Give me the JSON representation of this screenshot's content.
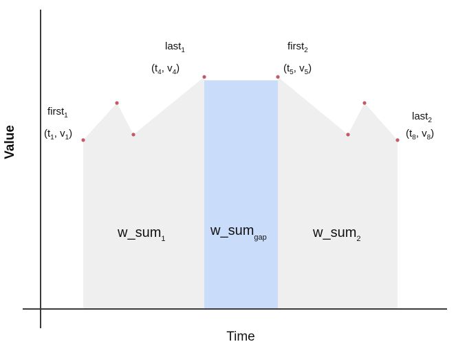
{
  "axes": {
    "x_label": "Time",
    "y_label": "Value"
  },
  "colors": {
    "area": "#efefef",
    "gap": "#c9ddfb",
    "axis": "#3a3a3a",
    "point": "#c25a6a"
  },
  "annotations": {
    "first1_word": "first",
    "first1_sub": "1",
    "first1_pt": [
      "t",
      "1",
      ", v",
      "1",
      ")"
    ],
    "last1_word": "last",
    "last1_sub": "1",
    "last1_pt": [
      "t",
      "4",
      ", v",
      "4",
      ")"
    ],
    "first2_word": "first",
    "first2_sub": "2",
    "first2_pt": [
      "t",
      "5",
      ", v",
      "5",
      ")"
    ],
    "last2_word": "last",
    "last2_sub": "2",
    "last2_pt": [
      "t",
      "8",
      ", v",
      "8",
      ")"
    ]
  },
  "regions": {
    "w1_base": "w_sum",
    "w1_sub": "1",
    "gap_base": "w_sum",
    "gap_sub": "gap",
    "w2_base": "w_sum",
    "w2_sub": "2"
  }
}
